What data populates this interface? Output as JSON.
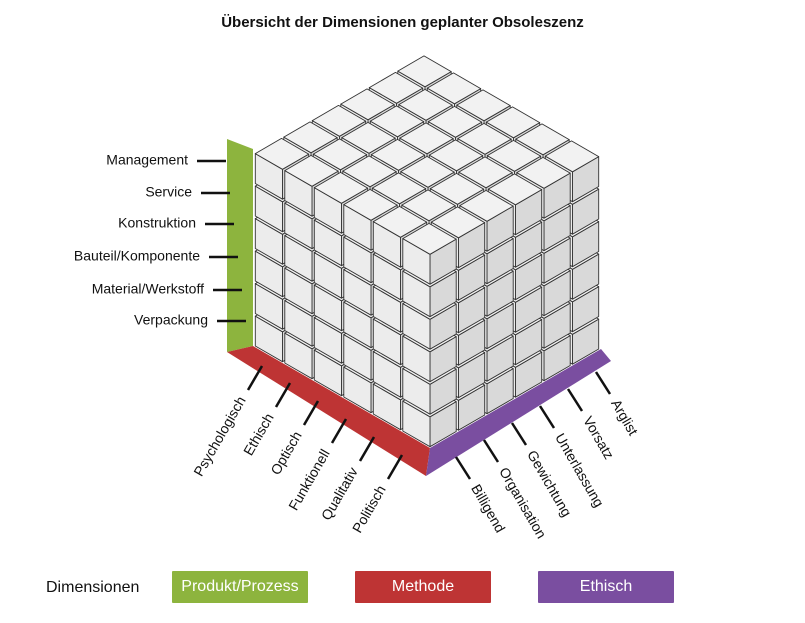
{
  "title": "Übersicht der Dimensionen geplanter Obsoleszenz",
  "colors": {
    "green": "#8db43e",
    "red": "#be3434",
    "purple": "#7a4ea0",
    "cube_top": "#f2f2f2",
    "cube_front": "#ececec",
    "cube_side": "#d9d9d9"
  },
  "axes": {
    "produkt_prozess": [
      "Management",
      "Service",
      "Konstruktion",
      "Bauteil/Komponente",
      "Material/Werkstoff",
      "Verpackung"
    ],
    "methode": [
      "Psychologisch",
      "Ethisch",
      "Optisch",
      "Funktionell",
      "Qualitativ",
      "Politisch"
    ],
    "ethisch": [
      "Billigend",
      "Organisation",
      "Gewichtung",
      "Unterlassung",
      "Vorsatz",
      "Arglist"
    ]
  },
  "legend": {
    "label": "Dimensionen",
    "items": [
      {
        "label": "Produkt/Prozess",
        "color": "#8db43e"
      },
      {
        "label": "Methode",
        "color": "#be3434"
      },
      {
        "label": "Ethisch",
        "color": "#7a4ea0"
      }
    ]
  }
}
